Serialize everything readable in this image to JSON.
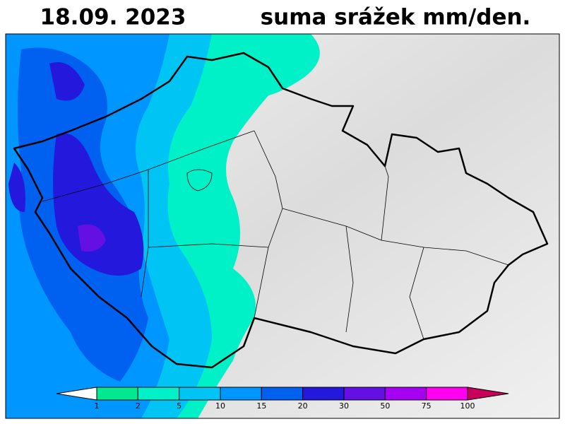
{
  "header": {
    "date": "18.09.  2023",
    "title": "suma srážek mm/den."
  },
  "legend": {
    "ticks": [
      1,
      2,
      5,
      10,
      15,
      20,
      30,
      50,
      75,
      100
    ],
    "colors": [
      "#ffffff",
      "#00e890",
      "#00f0c8",
      "#00c4f4",
      "#0096ff",
      "#0060f0",
      "#2418dc",
      "#6410e4",
      "#a600f4",
      "#ff00f0",
      "#c8005a"
    ]
  }
}
